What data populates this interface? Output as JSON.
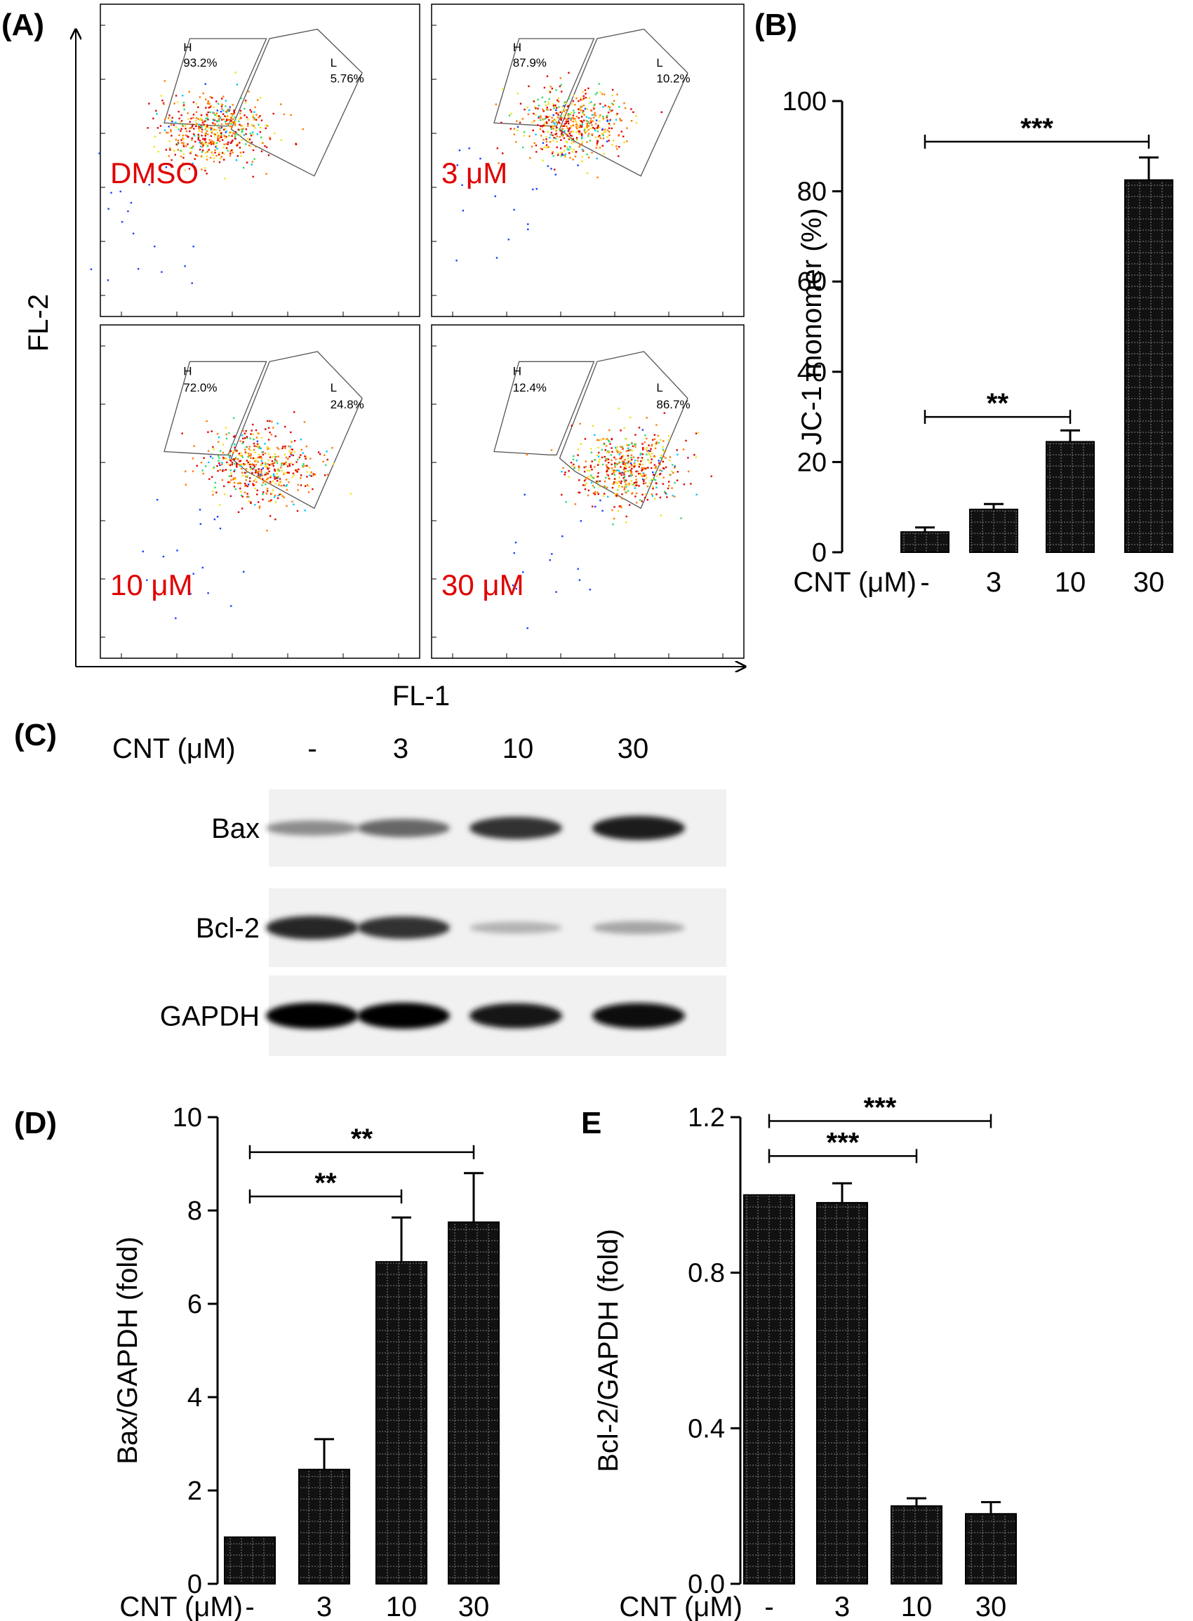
{
  "panel_labels": {
    "a": "(A)",
    "b": "(B)",
    "c": "(C)",
    "d": "(D)",
    "e": "E"
  },
  "flow": {
    "y_axis_label": "FL-2",
    "x_axis_label": "FL-1",
    "gate_high": "H",
    "gate_low": "L",
    "panels": [
      {
        "condition": "DMSO",
        "h_pct": "93.2%",
        "l_pct": "5.76%",
        "cluster_cx": 0.36,
        "cluster_cy": 0.4
      },
      {
        "condition": "3 μM",
        "h_pct": "87.9%",
        "l_pct": "10.2%",
        "cluster_cx": 0.45,
        "cluster_cy": 0.38
      },
      {
        "condition": "10 μM",
        "h_pct": "72.0%",
        "l_pct": "24.8%",
        "cluster_cx": 0.5,
        "cluster_cy": 0.42
      },
      {
        "condition": "30 μM",
        "h_pct": "12.4%",
        "l_pct": "86.7%",
        "cluster_cx": 0.62,
        "cluster_cy": 0.43
      }
    ],
    "density_colors": [
      "#1a3cff",
      "#00c6ff",
      "#2fd96a",
      "#f2e21c",
      "#ff7a00",
      "#e00000"
    ]
  },
  "blot": {
    "header_label": "CNT (μM)",
    "lanes": [
      "-",
      "3",
      "10",
      "30"
    ],
    "rows": [
      {
        "label": "Bax",
        "intensity": [
          0.45,
          0.6,
          0.8,
          0.88
        ]
      },
      {
        "label": "Bcl-2",
        "intensity": [
          0.85,
          0.8,
          0.3,
          0.35
        ]
      },
      {
        "label": "GAPDH",
        "intensity": [
          0.98,
          0.98,
          0.92,
          0.95
        ]
      }
    ]
  },
  "chart_data": [
    {
      "panel": "B",
      "type": "bar",
      "categories": [
        "-",
        "3",
        "10",
        "30"
      ],
      "x_label": "CNT (μM)",
      "ylabel": "JC-1 monomer (%)",
      "values": [
        4.5,
        9.5,
        24.5,
        82.5
      ],
      "errors": [
        1.0,
        1.2,
        2.5,
        5.0
      ],
      "ylim": [
        0,
        100
      ],
      "yticks": [
        "0",
        "20",
        "40",
        "60",
        "80",
        "100"
      ],
      "significance": [
        {
          "from": 0,
          "to": 2,
          "label": "**",
          "y": 30
        },
        {
          "from": 0,
          "to": 3,
          "label": "***",
          "y": 91
        }
      ]
    },
    {
      "panel": "D",
      "type": "bar",
      "categories": [
        "-",
        "3",
        "10",
        "30"
      ],
      "x_label": "CNT (μM)",
      "ylabel": "Bax/GAPDH (fold)",
      "values": [
        1.0,
        2.45,
        6.9,
        7.75
      ],
      "errors": [
        0,
        0.65,
        0.95,
        1.05
      ],
      "ylim": [
        0,
        10
      ],
      "yticks": [
        "0",
        "2",
        "4",
        "6",
        "8",
        "10"
      ],
      "significance": [
        {
          "from": 0,
          "to": 2,
          "label": "**",
          "y": 8.3
        },
        {
          "from": 0,
          "to": 3,
          "label": "**",
          "y": 9.25
        }
      ]
    },
    {
      "panel": "E",
      "type": "bar",
      "categories": [
        "-",
        "3",
        "10",
        "30"
      ],
      "x_label": "CNT (μM)",
      "ylabel": "Bcl-2/GAPDH (fold)",
      "values": [
        1.0,
        0.98,
        0.2,
        0.18
      ],
      "errors": [
        0,
        0.05,
        0.02,
        0.03
      ],
      "ylim": [
        0,
        1.2
      ],
      "yticks": [
        "0.0",
        "0.4",
        "0.8",
        "1.2"
      ],
      "ytick_values": [
        0,
        0.4,
        0.8,
        1.2
      ],
      "significance": [
        {
          "from": 0,
          "to": 2,
          "label": "***",
          "y": 1.1
        },
        {
          "from": 0,
          "to": 3,
          "label": "***",
          "y": 1.19
        }
      ]
    }
  ]
}
